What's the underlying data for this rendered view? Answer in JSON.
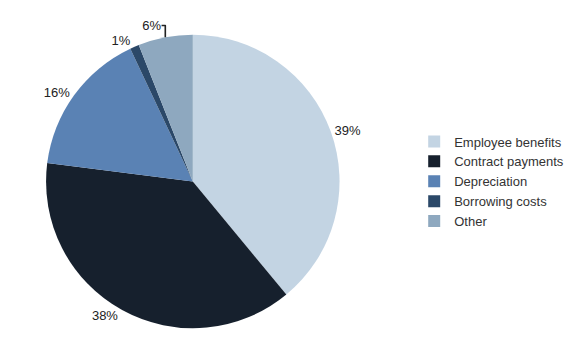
{
  "chart_data": {
    "type": "pie",
    "categories": [
      "Employee benefits",
      "Contract payments",
      "Depreciation",
      "Borrowing costs",
      "Other"
    ],
    "values": [
      39,
      38,
      16,
      1,
      6
    ],
    "value_labels": [
      "39%",
      "38%",
      "16%",
      "1%",
      "6%"
    ],
    "colors": [
      "#c3d4e3",
      "#16202d",
      "#5a82b4",
      "#2b4868",
      "#8ea8bf"
    ],
    "data_labels": true,
    "legend": "right"
  }
}
